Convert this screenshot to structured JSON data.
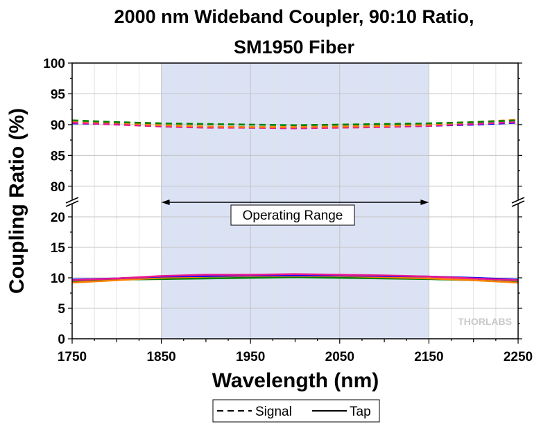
{
  "chart_data": {
    "type": "line",
    "title": [
      "2000 nm Wideband Coupler, 90:10 Ratio,",
      "SM1950 Fiber"
    ],
    "xlabel": "Wavelength (nm)",
    "ylabel": "Coupling Ratio (%)",
    "xlim": [
      1750,
      2250
    ],
    "x_ticks": [
      "1750",
      "1850",
      "1950",
      "2050",
      "2150",
      "2250"
    ],
    "y_upper_range": [
      77.5,
      100
    ],
    "y_upper_ticks": [
      "80",
      "85",
      "90",
      "95",
      "100"
    ],
    "y_lower_range": [
      0,
      22.5
    ],
    "y_lower_ticks": [
      "0",
      "5",
      "10",
      "15",
      "20"
    ],
    "axis_break": true,
    "grid": true,
    "shaded_band": {
      "x": [
        1850,
        2150
      ],
      "color": "#dbe2f4"
    },
    "annotation": {
      "text": "Operating Range",
      "x": [
        1850,
        2150
      ],
      "y": 22.5
    },
    "watermark": "THORLABS",
    "legend": {
      "placement": "bottom",
      "entries": [
        {
          "label": "Signal",
          "style": "dashed"
        },
        {
          "label": "Tap",
          "style": "solid"
        }
      ]
    },
    "x": [
      1750,
      1800,
      1850,
      1900,
      1950,
      2000,
      2050,
      2100,
      2150,
      2200,
      2250
    ],
    "series": [
      {
        "color": "#0000ff",
        "style": "dashed",
        "values": [
          90.2,
          90.1,
          89.8,
          89.6,
          89.5,
          89.5,
          89.6,
          89.7,
          89.8,
          90.0,
          90.3
        ]
      },
      {
        "color": "#e8198f",
        "style": "dashed",
        "values": [
          90.3,
          90.0,
          89.7,
          89.5,
          89.5,
          89.4,
          89.5,
          89.6,
          89.8,
          90.1,
          90.4
        ]
      },
      {
        "color": "#ff8000",
        "style": "dashed",
        "values": [
          90.6,
          90.3,
          89.9,
          89.7,
          89.6,
          89.6,
          89.7,
          89.8,
          90.0,
          90.4,
          90.8
        ]
      },
      {
        "color": "#008000",
        "style": "dashed",
        "values": [
          90.7,
          90.4,
          90.2,
          90.1,
          90.0,
          89.9,
          90.0,
          90.1,
          90.2,
          90.4,
          90.7
        ]
      },
      {
        "color": "#008000",
        "style": "solid",
        "values": [
          9.4,
          9.7,
          9.8,
          9.9,
          10.0,
          10.1,
          10.0,
          9.9,
          9.8,
          9.6,
          9.3
        ]
      },
      {
        "color": "#ff8000",
        "style": "solid",
        "values": [
          9.2,
          9.6,
          10.0,
          10.2,
          10.3,
          10.3,
          10.3,
          10.1,
          9.9,
          9.6,
          9.2
        ]
      },
      {
        "color": "#0000ff",
        "style": "solid",
        "values": [
          9.7,
          9.9,
          10.2,
          10.3,
          10.4,
          10.4,
          10.4,
          10.3,
          10.2,
          10.0,
          9.7
        ]
      },
      {
        "color": "#e8198f",
        "style": "solid",
        "values": [
          9.6,
          9.9,
          10.3,
          10.5,
          10.5,
          10.6,
          10.5,
          10.4,
          10.2,
          9.9,
          9.6
        ]
      }
    ]
  }
}
